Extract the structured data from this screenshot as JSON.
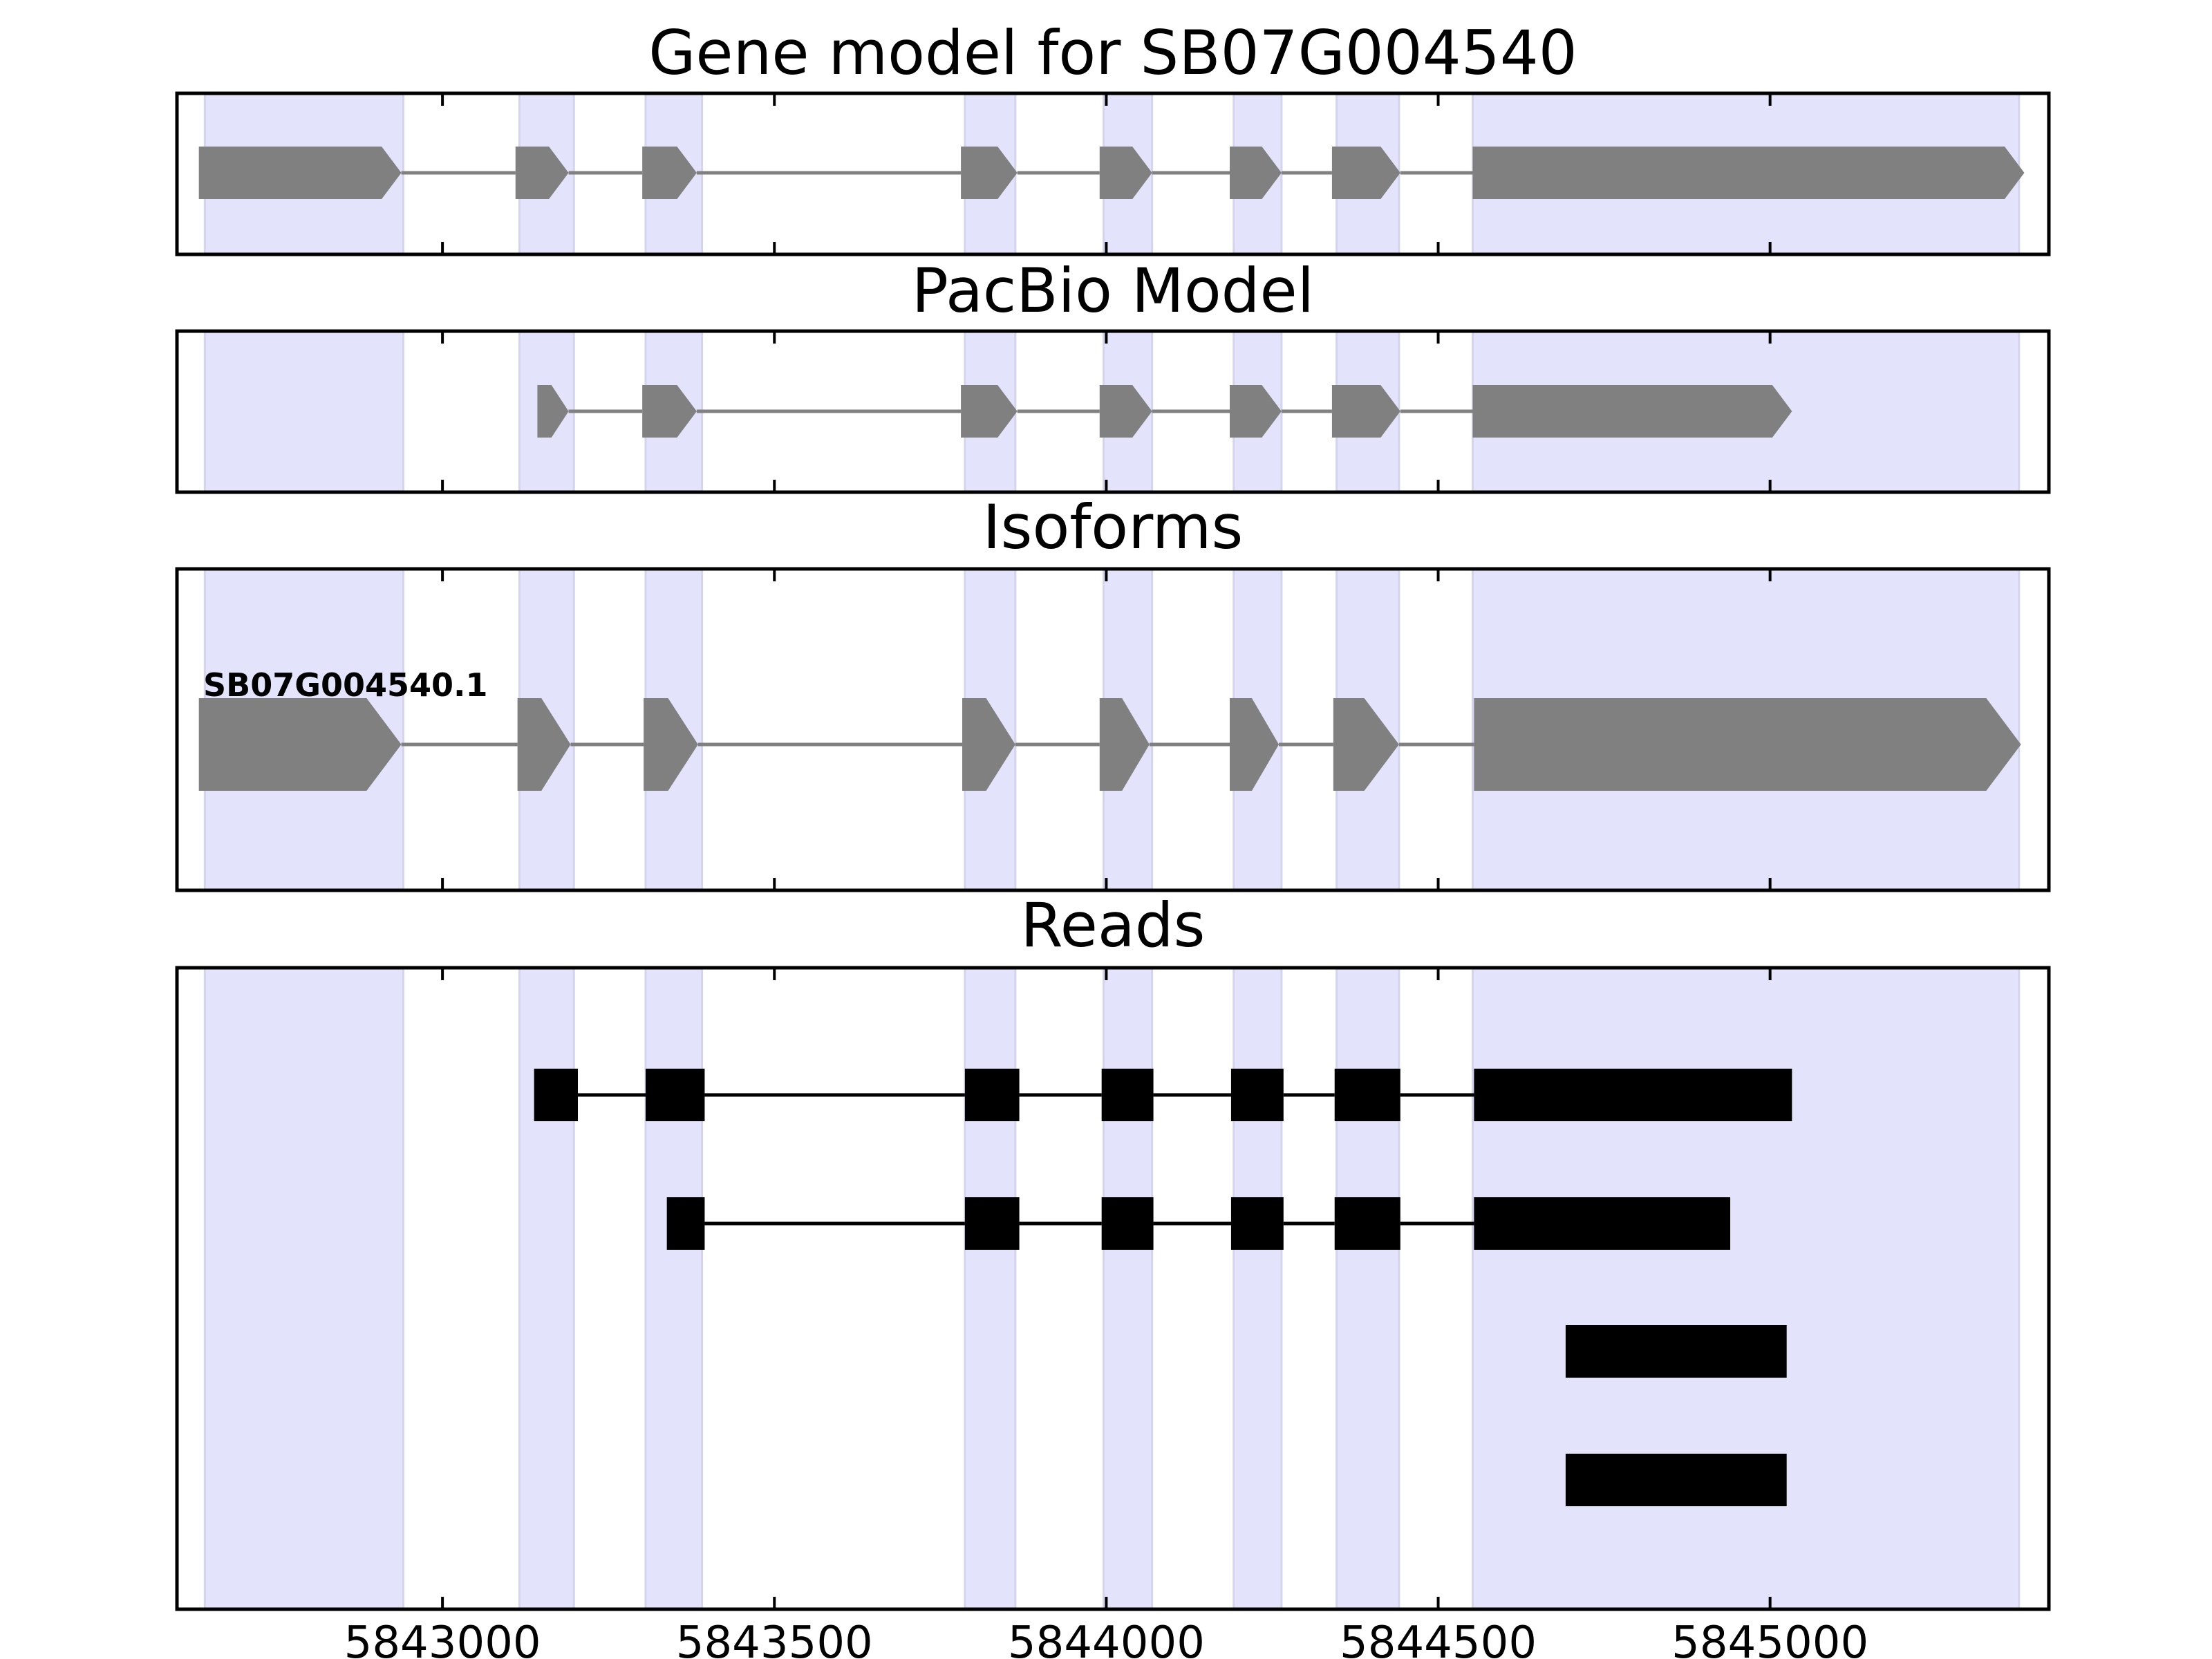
{
  "chart_data": {
    "type": "gene-track",
    "x_range": [
      5842600,
      5845420
    ],
    "x_ticks": [
      5843000,
      5843500,
      5844000,
      5844500,
      5845000
    ],
    "x_tick_labels": [
      "5843000",
      "5843500",
      "5844000",
      "5844500",
      "5845000"
    ],
    "shaded_exon_regions": [
      [
        5842642,
        5842941
      ],
      [
        5843116,
        5843198
      ],
      [
        5843306,
        5843391
      ],
      [
        5843787,
        5843863
      ],
      [
        5843996,
        5844069
      ],
      [
        5844192,
        5844264
      ],
      [
        5844347,
        5844441
      ],
      [
        5844552,
        5845375
      ]
    ],
    "colors": {
      "shade": "#e3e3fb",
      "model": "#808080",
      "read": "#000000",
      "frame": "#000000"
    },
    "panels": [
      {
        "title": "Gene model for SB07G004540",
        "rows": [
          {
            "label": "",
            "exons": [
              [
                5842633,
                5842938
              ],
              [
                5843110,
                5843190
              ],
              [
                5843301,
                5843383
              ],
              [
                5843781,
                5843866
              ],
              [
                5843990,
                5844069
              ],
              [
                5844186,
                5844264
              ],
              [
                5844340,
                5844443
              ],
              [
                5844552,
                5845383
              ]
            ]
          }
        ]
      },
      {
        "title": "PacBio Model",
        "rows": [
          {
            "label": "",
            "exons": [
              [
                5843143,
                5843190
              ],
              [
                5843301,
                5843383
              ],
              [
                5843781,
                5843866
              ],
              [
                5843990,
                5844069
              ],
              [
                5844186,
                5844264
              ],
              [
                5844340,
                5844443
              ],
              [
                5844552,
                5845033
              ]
            ]
          }
        ]
      },
      {
        "title": "Isoforms",
        "rows": [
          {
            "label": "SB07G004540.1",
            "exons": [
              [
                5842633,
                5842938
              ],
              [
                5843113,
                5843193
              ],
              [
                5843303,
                5843385
              ],
              [
                5843783,
                5843863
              ],
              [
                5843990,
                5844065
              ],
              [
                5844186,
                5844260
              ],
              [
                5844342,
                5844441
              ],
              [
                5844554,
                5845378
              ]
            ]
          }
        ]
      },
      {
        "title": "Reads",
        "rows": [
          {
            "label": "",
            "exons": [
              [
                5843138,
                5843204
              ],
              [
                5843306,
                5843395
              ],
              [
                5843787,
                5843869
              ],
              [
                5843993,
                5844071
              ],
              [
                5844188,
                5844267
              ],
              [
                5844344,
                5844443
              ],
              [
                5844554,
                5845033
              ]
            ]
          },
          {
            "label": "",
            "exons": [
              [
                5843338,
                5843395
              ],
              [
                5843787,
                5843869
              ],
              [
                5843993,
                5844071
              ],
              [
                5844188,
                5844267
              ],
              [
                5844344,
                5844443
              ],
              [
                5844554,
                5844940
              ]
            ]
          },
          {
            "label": "",
            "exons": [
              [
                5844692,
                5845025
              ]
            ]
          },
          {
            "label": "",
            "exons": [
              [
                5844692,
                5845025
              ]
            ]
          }
        ]
      }
    ]
  }
}
